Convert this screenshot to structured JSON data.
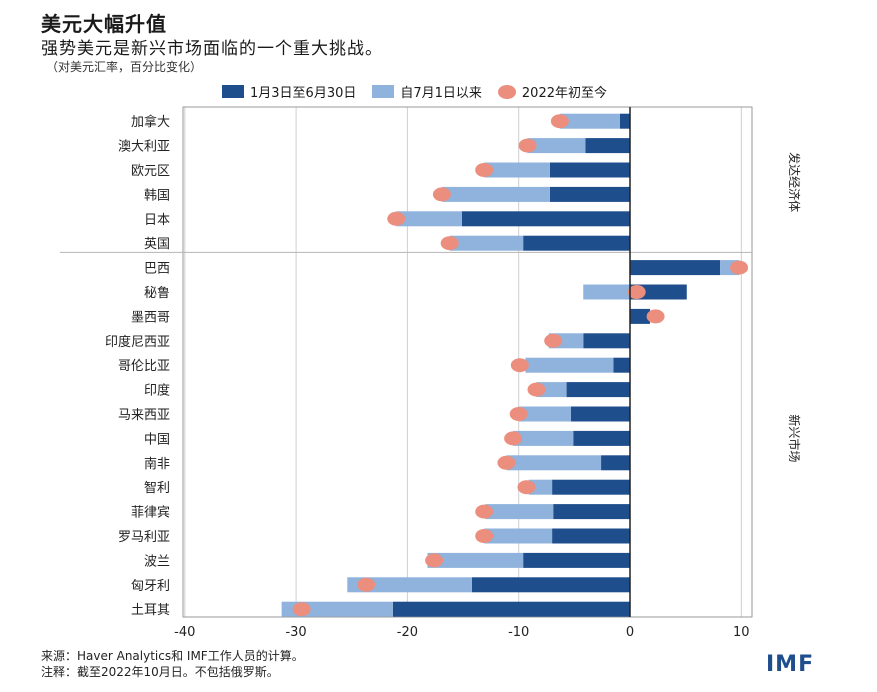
{
  "title": "美元大幅升值",
  "subtitle": "强势美元是新兴市场面临的一个重大挑战。",
  "note": "（对美元汇率，百分比变化）",
  "colors": {
    "series1": "#1f4e8c",
    "series2": "#8fb3dc",
    "marker": "#ec8e7d",
    "grid": "#cfcfcf",
    "divider": "#b5b5b5"
  },
  "chart_data": {
    "type": "bar",
    "orientation": "horizontal",
    "xlim": [
      -40,
      10
    ],
    "x_ticks": [
      -40,
      -30,
      -20,
      -10,
      0,
      10
    ],
    "x_tick_labels": [
      "-40",
      "-30",
      "-20",
      "-10",
      "0",
      "10"
    ],
    "grid": true,
    "legend_position": "top",
    "categories": [
      "加拿大",
      "澳大利亚",
      "欧元区",
      "韩国",
      "日本",
      "英国",
      "巴西",
      "秘鲁",
      "墨西哥",
      "印度尼西亚",
      "哥伦比亚",
      "印度",
      "马来西亚",
      "中国",
      "南非",
      "智利",
      "菲律宾",
      "罗马利亚",
      "波兰",
      "匈牙利",
      "土耳其"
    ],
    "groups": [
      {
        "label": "发达经济体",
        "start": 0,
        "end": 5
      },
      {
        "label": "新兴市场",
        "start": 6,
        "end": 20
      }
    ],
    "series": [
      {
        "name": "1月3日至6月30日",
        "type": "bar",
        "values": [
          -0.9,
          -4.0,
          -7.2,
          -7.2,
          -15.1,
          -9.6,
          8.1,
          5.1,
          1.8,
          -4.2,
          -1.5,
          -5.7,
          -5.3,
          -5.1,
          -2.6,
          -7.0,
          -6.9,
          -7.0,
          -9.6,
          -14.2,
          -21.3
        ]
      },
      {
        "name": "自7月1日以来",
        "type": "bar",
        "values": [
          -5.4,
          -5.2,
          -5.9,
          -9.7,
          -5.9,
          -6.6,
          1.7,
          -4.2,
          0.0,
          -3.1,
          -7.9,
          -2.7,
          -4.7,
          -5.4,
          -8.5,
          -2.1,
          -6.1,
          -6.1,
          -8.6,
          -11.2,
          -10.0
        ]
      },
      {
        "name": "2022年初至今",
        "type": "marker",
        "values": [
          -6.3,
          -9.2,
          -13.1,
          -16.9,
          -21.0,
          -16.2,
          9.8,
          0.6,
          2.3,
          -6.9,
          -9.9,
          -8.4,
          -10.0,
          -10.5,
          -11.1,
          -9.3,
          -13.1,
          -13.1,
          -17.6,
          -23.7,
          -29.5
        ]
      }
    ]
  },
  "footer": {
    "source": "来源：Haver Analytics和 IMF工作人员的计算。",
    "notes": "注释：截至2022年10月日。不包括俄罗斯。"
  },
  "brand": "IMF"
}
